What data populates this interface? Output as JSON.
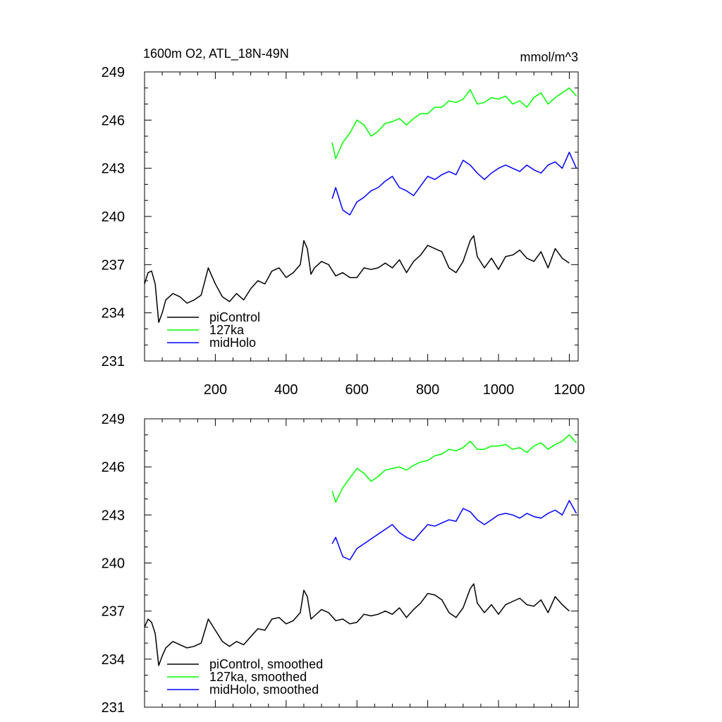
{
  "chart_data": [
    {
      "type": "line",
      "panel": "top",
      "title": "1600m O2, ATL_18N-49N",
      "units": "mmol/m^3",
      "xlim": [
        0,
        1225
      ],
      "ylim": [
        231,
        249
      ],
      "xticks": [
        200,
        400,
        600,
        800,
        1000,
        1200
      ],
      "xtick_labels": [
        "200",
        "400",
        "600",
        "800",
        "1000",
        "1200"
      ],
      "yticks": [
        231,
        234,
        237,
        240,
        243,
        246,
        249
      ],
      "ytick_labels": [
        "231",
        "234",
        "237",
        "240",
        "243",
        "246",
        "249"
      ],
      "legend_position": "bottom-left",
      "grid": false,
      "series": [
        {
          "name": "piControl",
          "color": "#000000",
          "x": [
            0,
            10,
            20,
            30,
            40,
            50,
            60,
            80,
            100,
            120,
            140,
            160,
            180,
            200,
            220,
            240,
            260,
            280,
            300,
            320,
            340,
            360,
            380,
            400,
            420,
            440,
            450,
            460,
            470,
            480,
            500,
            520,
            540,
            560,
            580,
            600,
            620,
            640,
            660,
            680,
            700,
            720,
            740,
            760,
            780,
            800,
            820,
            840,
            860,
            880,
            900,
            920,
            930,
            940,
            960,
            980,
            1000,
            1020,
            1040,
            1060,
            1080,
            1100,
            1120,
            1140,
            1160,
            1180,
            1200
          ],
          "values": [
            235.8,
            236.5,
            236.6,
            235.8,
            233.4,
            234.0,
            234.8,
            235.2,
            235.0,
            234.6,
            234.8,
            235.1,
            236.8,
            235.8,
            235.0,
            234.7,
            235.2,
            234.8,
            235.5,
            236.0,
            235.8,
            236.6,
            236.8,
            236.2,
            236.5,
            237.0,
            238.5,
            238.0,
            236.4,
            236.8,
            237.2,
            237.0,
            236.3,
            236.5,
            236.2,
            236.2,
            236.8,
            236.7,
            236.8,
            237.1,
            236.8,
            237.3,
            236.5,
            237.2,
            237.6,
            238.2,
            238.0,
            237.8,
            236.8,
            236.5,
            237.2,
            238.5,
            238.8,
            237.5,
            236.8,
            237.4,
            236.7,
            237.5,
            237.6,
            237.9,
            237.4,
            237.2,
            237.8,
            236.8,
            238.0,
            237.4,
            237.1
          ]
        },
        {
          "name": "127ka",
          "color": "#00ff00",
          "x": [
            530,
            540,
            560,
            580,
            600,
            620,
            640,
            660,
            680,
            700,
            720,
            740,
            760,
            780,
            800,
            820,
            840,
            860,
            880,
            900,
            920,
            940,
            960,
            980,
            1000,
            1020,
            1040,
            1060,
            1080,
            1100,
            1120,
            1140,
            1160,
            1180,
            1200,
            1220
          ],
          "values": [
            244.6,
            243.6,
            244.6,
            245.2,
            246.0,
            245.7,
            245.0,
            245.3,
            245.8,
            245.9,
            246.1,
            245.7,
            246.1,
            246.4,
            246.4,
            246.8,
            246.8,
            247.2,
            247.1,
            247.3,
            247.9,
            247.0,
            247.1,
            247.4,
            247.3,
            247.5,
            247.0,
            247.2,
            246.8,
            247.4,
            247.7,
            247.0,
            247.4,
            247.7,
            248.0,
            247.5
          ]
        },
        {
          "name": "midHolo",
          "color": "#0000ff",
          "x": [
            530,
            540,
            560,
            580,
            600,
            620,
            640,
            660,
            680,
            700,
            720,
            740,
            760,
            780,
            800,
            820,
            840,
            860,
            880,
            900,
            920,
            940,
            960,
            980,
            1000,
            1020,
            1040,
            1060,
            1080,
            1100,
            1120,
            1140,
            1160,
            1180,
            1200,
            1220
          ],
          "values": [
            241.1,
            241.8,
            240.4,
            240.1,
            240.9,
            241.2,
            241.6,
            241.8,
            242.2,
            242.5,
            241.8,
            241.6,
            241.3,
            241.9,
            242.5,
            242.3,
            242.6,
            242.8,
            242.6,
            243.5,
            243.2,
            242.7,
            242.3,
            242.7,
            243.0,
            243.2,
            243.0,
            242.8,
            243.2,
            242.9,
            242.7,
            243.2,
            243.4,
            243.0,
            244.0,
            243.0
          ]
        }
      ]
    },
    {
      "type": "line",
      "panel": "bottom",
      "xlim": [
        0,
        1225
      ],
      "ylim": [
        231,
        249
      ],
      "yticks": [
        231,
        234,
        237,
        240,
        243,
        246,
        249
      ],
      "ytick_labels": [
        "231",
        "234",
        "237",
        "240",
        "243",
        "246",
        "249"
      ],
      "legend_position": "bottom-left",
      "grid": false,
      "series": [
        {
          "name": "piControl, smoothed",
          "color": "#000000",
          "x": [
            0,
            10,
            20,
            30,
            40,
            50,
            60,
            80,
            100,
            120,
            140,
            160,
            180,
            200,
            220,
            240,
            260,
            280,
            300,
            320,
            340,
            360,
            380,
            400,
            420,
            440,
            450,
            460,
            470,
            480,
            500,
            520,
            540,
            560,
            580,
            600,
            620,
            640,
            660,
            680,
            700,
            720,
            740,
            760,
            780,
            800,
            820,
            840,
            860,
            880,
            900,
            920,
            930,
            940,
            960,
            980,
            1000,
            1020,
            1040,
            1060,
            1080,
            1100,
            1120,
            1140,
            1160,
            1180,
            1200
          ],
          "values": [
            236.0,
            236.5,
            236.3,
            235.6,
            233.6,
            234.2,
            234.7,
            235.1,
            234.9,
            234.7,
            234.8,
            235.0,
            236.5,
            235.8,
            235.1,
            234.8,
            235.1,
            234.9,
            235.4,
            235.9,
            235.8,
            236.5,
            236.6,
            236.2,
            236.4,
            236.9,
            238.3,
            237.9,
            236.5,
            236.7,
            237.1,
            236.9,
            236.4,
            236.5,
            236.2,
            236.3,
            236.8,
            236.7,
            236.8,
            237.0,
            236.8,
            237.2,
            236.6,
            237.1,
            237.5,
            238.1,
            238.0,
            237.7,
            236.9,
            236.6,
            237.2,
            238.4,
            238.7,
            237.5,
            236.9,
            237.4,
            236.8,
            237.4,
            237.6,
            237.8,
            237.4,
            237.3,
            237.7,
            236.9,
            237.9,
            237.4,
            237.0
          ]
        },
        {
          "name": "127ka, smoothed",
          "color": "#00ff00",
          "x": [
            530,
            540,
            560,
            580,
            600,
            620,
            640,
            660,
            680,
            700,
            720,
            740,
            760,
            780,
            800,
            820,
            840,
            860,
            880,
            900,
            920,
            940,
            960,
            980,
            1000,
            1020,
            1040,
            1060,
            1080,
            1100,
            1120,
            1140,
            1160,
            1180,
            1200,
            1220
          ],
          "values": [
            244.5,
            243.8,
            244.7,
            245.3,
            245.9,
            245.6,
            245.1,
            245.4,
            245.8,
            245.9,
            246.0,
            245.8,
            246.1,
            246.3,
            246.4,
            246.7,
            246.8,
            247.1,
            247.0,
            247.2,
            247.6,
            247.1,
            247.1,
            247.3,
            247.3,
            247.4,
            247.1,
            247.2,
            246.9,
            247.3,
            247.5,
            247.1,
            247.4,
            247.6,
            248.0,
            247.5
          ]
        },
        {
          "name": "midHolo, smoothed",
          "color": "#0000ff",
          "x": [
            530,
            540,
            560,
            580,
            600,
            620,
            640,
            660,
            680,
            700,
            720,
            740,
            760,
            780,
            800,
            820,
            840,
            860,
            880,
            900,
            920,
            940,
            960,
            980,
            1000,
            1020,
            1040,
            1060,
            1080,
            1100,
            1120,
            1140,
            1160,
            1180,
            1200,
            1220
          ],
          "values": [
            241.2,
            241.6,
            240.4,
            240.2,
            240.9,
            241.2,
            241.5,
            241.8,
            242.1,
            242.4,
            241.9,
            241.6,
            241.4,
            241.9,
            242.4,
            242.3,
            242.5,
            242.7,
            242.6,
            243.4,
            243.2,
            242.7,
            242.4,
            242.7,
            243.0,
            243.1,
            243.0,
            242.8,
            243.1,
            242.9,
            242.8,
            243.1,
            243.3,
            243.0,
            243.9,
            243.1
          ]
        }
      ]
    }
  ]
}
